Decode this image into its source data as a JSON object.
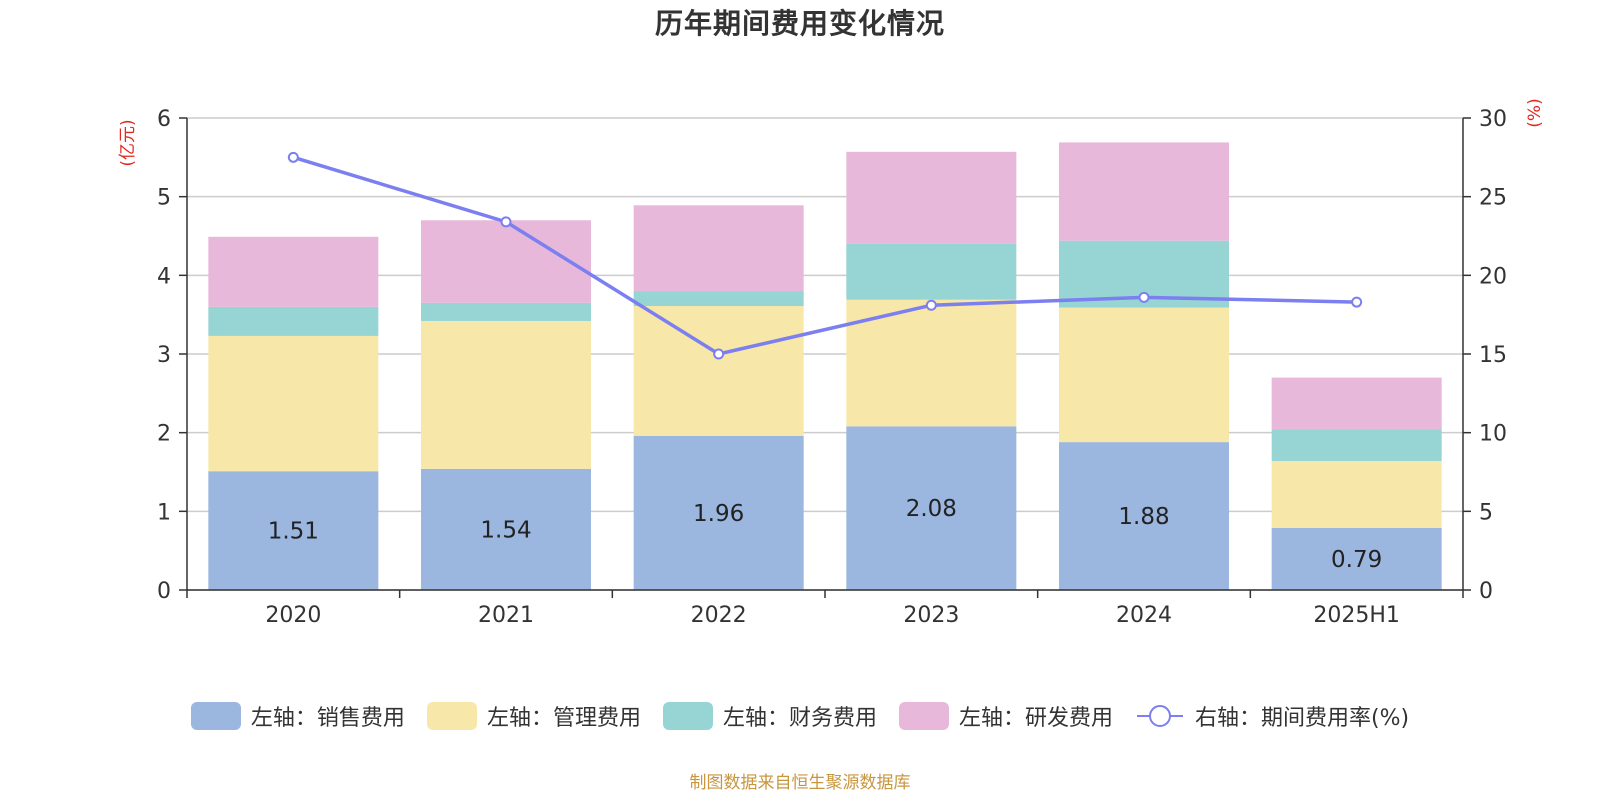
{
  "chart_data": {
    "type": "bar",
    "title": "历年期间费用变化情况",
    "categories": [
      "2020",
      "2021",
      "2022",
      "2023",
      "2024",
      "2025H1"
    ],
    "y_left": {
      "unit_label": "(亿元)",
      "ylim": [
        0,
        6
      ],
      "ticks": [
        "0",
        "1",
        "2",
        "3",
        "4",
        "5",
        "6"
      ]
    },
    "y_right": {
      "unit_label": "(%)",
      "ylim": [
        0,
        30
      ],
      "ticks": [
        "0",
        "5",
        "10",
        "15",
        "20",
        "25",
        "30"
      ]
    },
    "stacked": true,
    "series": [
      {
        "name": "左轴：销售费用",
        "axis": "left",
        "type": "bar",
        "color": "#9bb7e0",
        "values": [
          1.51,
          1.54,
          1.96,
          2.08,
          1.88,
          0.79
        ],
        "labels": [
          "1.51",
          "1.54",
          "1.96",
          "2.08",
          "1.88",
          "0.79"
        ]
      },
      {
        "name": "左轴：管理费用",
        "axis": "left",
        "type": "bar",
        "color": "#f7e7a8",
        "values": [
          1.72,
          1.88,
          1.65,
          1.61,
          1.71,
          0.85
        ]
      },
      {
        "name": "左轴：财务费用",
        "axis": "left",
        "type": "bar",
        "color": "#97d4d4",
        "values": [
          0.37,
          0.23,
          0.19,
          0.71,
          0.85,
          0.4
        ]
      },
      {
        "name": "左轴：研发费用",
        "axis": "left",
        "type": "bar",
        "color": "#e7b8d9",
        "values": [
          0.89,
          1.05,
          1.09,
          1.17,
          1.25,
          0.66
        ]
      },
      {
        "name": "右轴：期间费用率(%)",
        "axis": "right",
        "type": "line",
        "color": "#7b7ff0",
        "values": [
          27.5,
          23.4,
          15.0,
          18.1,
          18.6,
          18.3
        ]
      }
    ],
    "grid": true,
    "legend_position": "bottom"
  },
  "source_text": "制图数据来自恒生聚源数据库"
}
